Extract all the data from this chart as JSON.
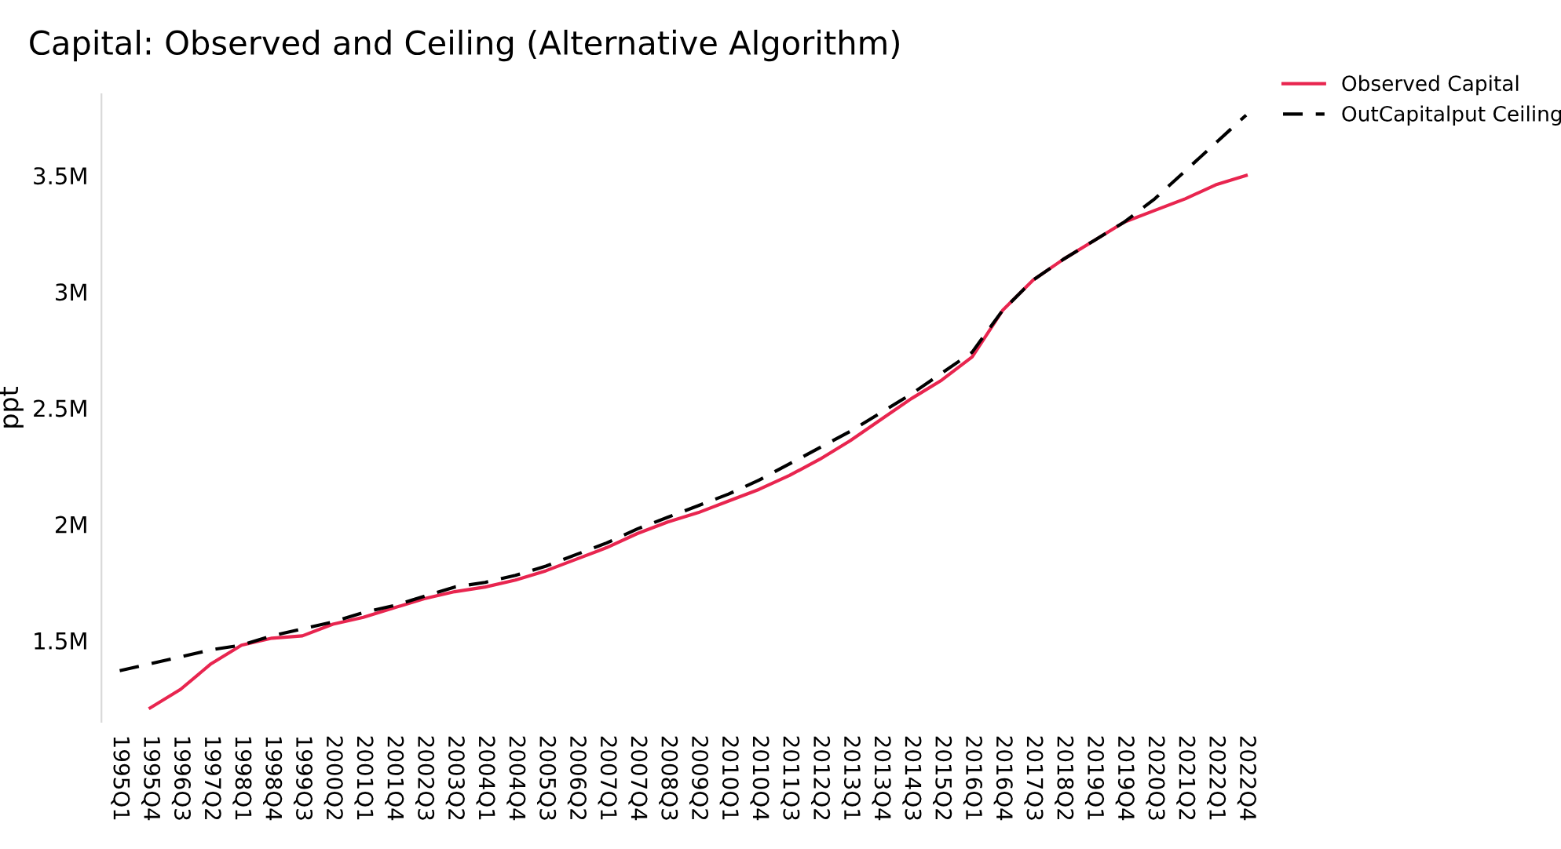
{
  "chart_data": {
    "type": "line",
    "title": "Capital: Observed and Ceiling (Alternative Algorithm)",
    "ylabel": "ppt",
    "categories": [
      "1995Q1",
      "1995Q4",
      "1996Q3",
      "1997Q2",
      "1998Q1",
      "1998Q4",
      "1999Q3",
      "2000Q2",
      "2001Q1",
      "2001Q4",
      "2002Q3",
      "2003Q2",
      "2004Q1",
      "2004Q4",
      "2005Q3",
      "2006Q2",
      "2007Q1",
      "2007Q4",
      "2008Q3",
      "2009Q2",
      "2010Q1",
      "2010Q4",
      "2011Q3",
      "2012Q2",
      "2013Q1",
      "2013Q4",
      "2014Q3",
      "2015Q2",
      "2016Q1",
      "2016Q4",
      "2017Q3",
      "2018Q2",
      "2019Q1",
      "2019Q4",
      "2020Q3",
      "2021Q2",
      "2022Q1",
      "2022Q4"
    ],
    "series": [
      {
        "name": "Observed Capital",
        "color": "#e8254f",
        "line_style": "solid",
        "values": [
          null,
          1.21,
          1.29,
          1.4,
          1.48,
          1.51,
          1.52,
          1.57,
          1.6,
          1.64,
          1.68,
          1.71,
          1.73,
          1.76,
          1.8,
          1.85,
          1.9,
          1.96,
          2.01,
          2.05,
          2.1,
          2.15,
          2.21,
          2.28,
          2.36,
          2.45,
          2.54,
          2.62,
          2.72,
          2.92,
          3.05,
          3.14,
          3.22,
          3.3,
          3.35,
          3.4,
          3.46,
          3.5
        ]
      },
      {
        "name": "OutCapitalput Ceiling",
        "color": "#000000",
        "line_style": "dashed",
        "values": [
          1.37,
          1.4,
          1.43,
          1.46,
          1.48,
          1.52,
          1.55,
          1.58,
          1.62,
          1.65,
          1.69,
          1.73,
          1.75,
          1.78,
          1.82,
          1.87,
          1.92,
          1.98,
          2.03,
          2.08,
          2.13,
          2.19,
          2.26,
          2.33,
          2.4,
          2.48,
          2.56,
          2.65,
          2.74,
          2.92,
          3.05,
          3.14,
          3.22,
          3.3,
          3.4,
          3.52,
          3.64,
          3.76
        ]
      }
    ],
    "ylim": [
      1.15,
      3.85
    ],
    "yticks": [
      {
        "value": 1.5,
        "label": "1.5M"
      },
      {
        "value": 2,
        "label": "2M"
      },
      {
        "value": 2.5,
        "label": "2.5M"
      },
      {
        "value": 3,
        "label": "3M"
      },
      {
        "value": 3.5,
        "label": "3.5M"
      }
    ],
    "grid": false,
    "legend": "top right",
    "marker": "none"
  }
}
